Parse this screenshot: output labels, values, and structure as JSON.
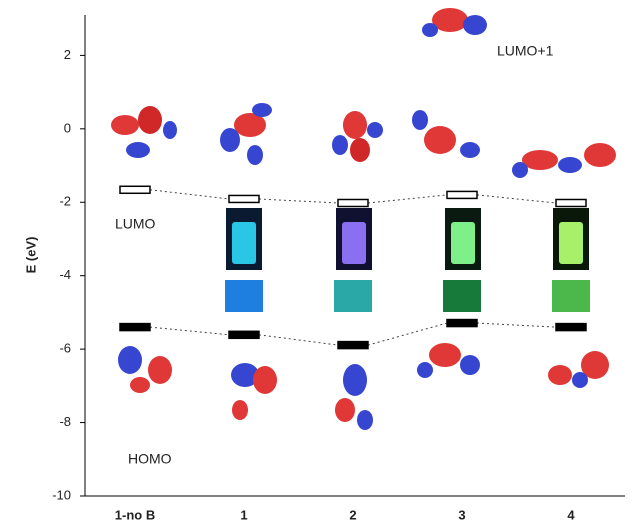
{
  "chart_data": {
    "type": "level",
    "y_label": "E (eV)",
    "categories": [
      "1-no B",
      "1",
      "2",
      "3",
      "4"
    ],
    "series": [
      {
        "name": "LUMO",
        "color": "#ffffff",
        "values": [
          -1.66,
          -1.91,
          -2.02,
          -1.8,
          -2.02
        ]
      },
      {
        "name": "HOMO",
        "color": "#000000",
        "values": [
          -5.4,
          -5.61,
          -5.89,
          -5.29,
          -5.4
        ]
      }
    ],
    "annotations": [
      "LUMO+1"
    ],
    "ylim": [
      -10,
      3.1
    ],
    "yticks": [
      -10,
      -8,
      -6,
      -4,
      -2,
      0,
      2
    ]
  }
}
